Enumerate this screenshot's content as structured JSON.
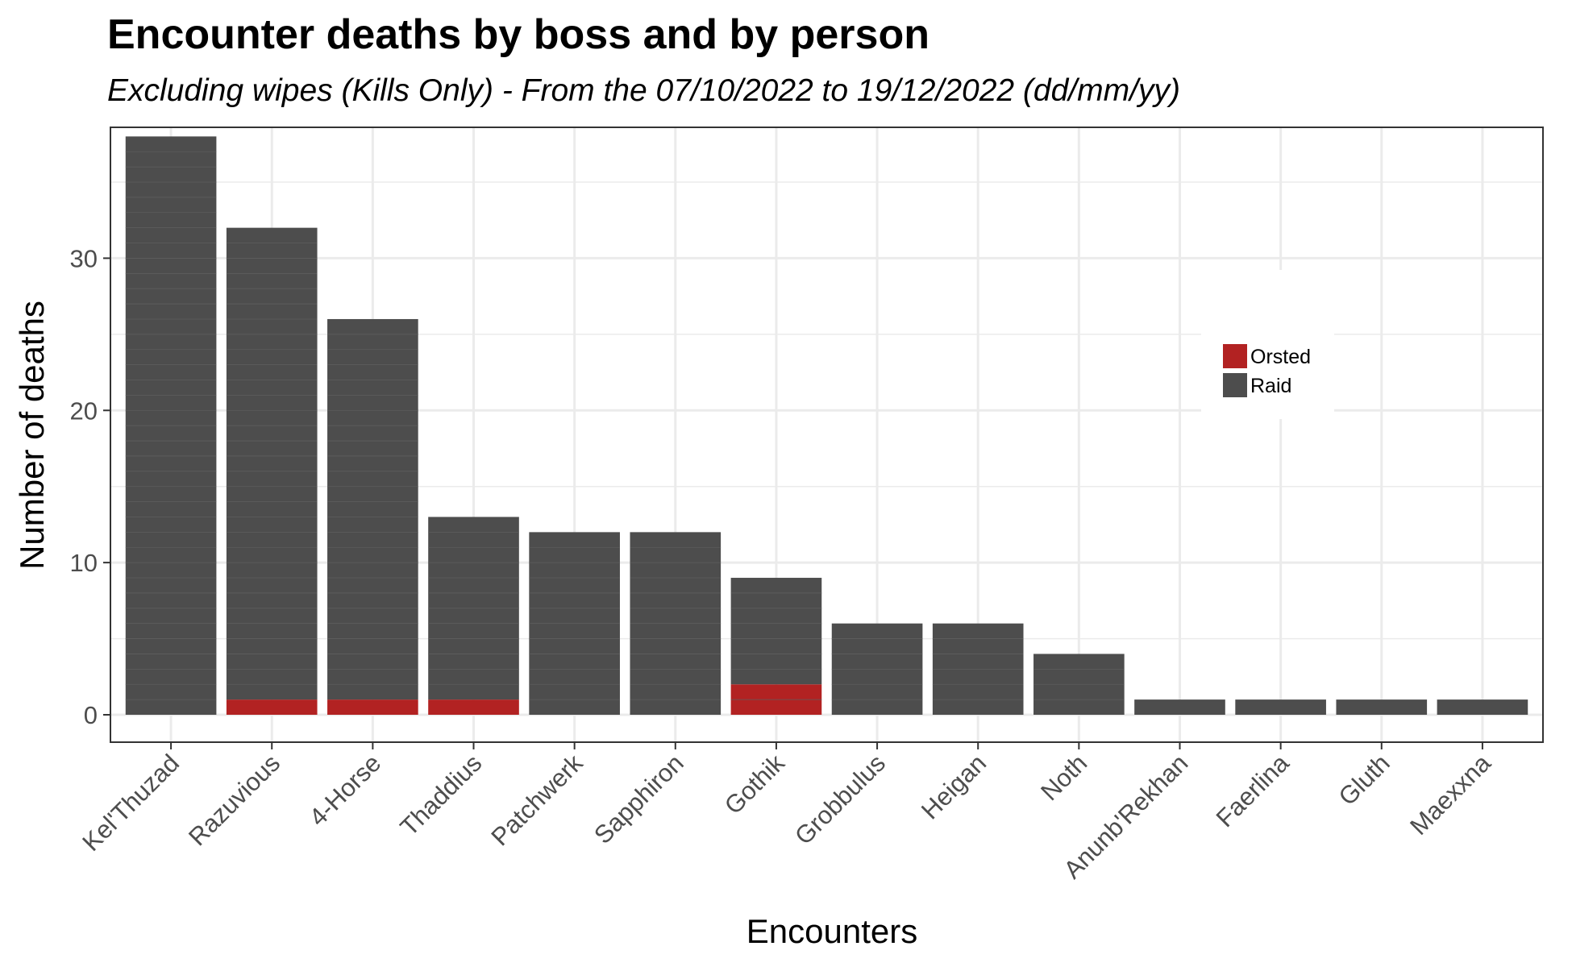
{
  "chart_data": {
    "type": "bar",
    "stacked": true,
    "title": "Encounter deaths by boss and by person",
    "subtitle": "Excluding wipes (Kills Only) - From the 07/10/2022 to 19/12/2022 (dd/mm/yy)",
    "xlabel": "Encounters",
    "ylabel": "Number of deaths",
    "ylim": [
      -1.8,
      38.6
    ],
    "yticks": [
      0,
      10,
      20,
      30
    ],
    "grid": true,
    "legend_position": "top-right",
    "categories": [
      "Kel'Thuzad",
      "Razuvious",
      "4-Horse",
      "Thaddius",
      "Patchwerk",
      "Sapphiron",
      "Gothik",
      "Grobbulus",
      "Heigan",
      "Noth",
      "Anunb'Rekhan",
      "Faerlina",
      "Gluth",
      "Maexxna"
    ],
    "series": [
      {
        "name": "Raid",
        "color": "#4d4d4d",
        "values": [
          38,
          31,
          25,
          12,
          12,
          12,
          7,
          6,
          6,
          4,
          1,
          1,
          1,
          1
        ]
      },
      {
        "name": "Orsted",
        "color": "#b22222",
        "values": [
          0,
          1,
          1,
          1,
          0,
          0,
          2,
          0,
          0,
          0,
          0,
          0,
          0,
          0
        ]
      }
    ],
    "legend": [
      "Orsted",
      "Raid"
    ]
  }
}
